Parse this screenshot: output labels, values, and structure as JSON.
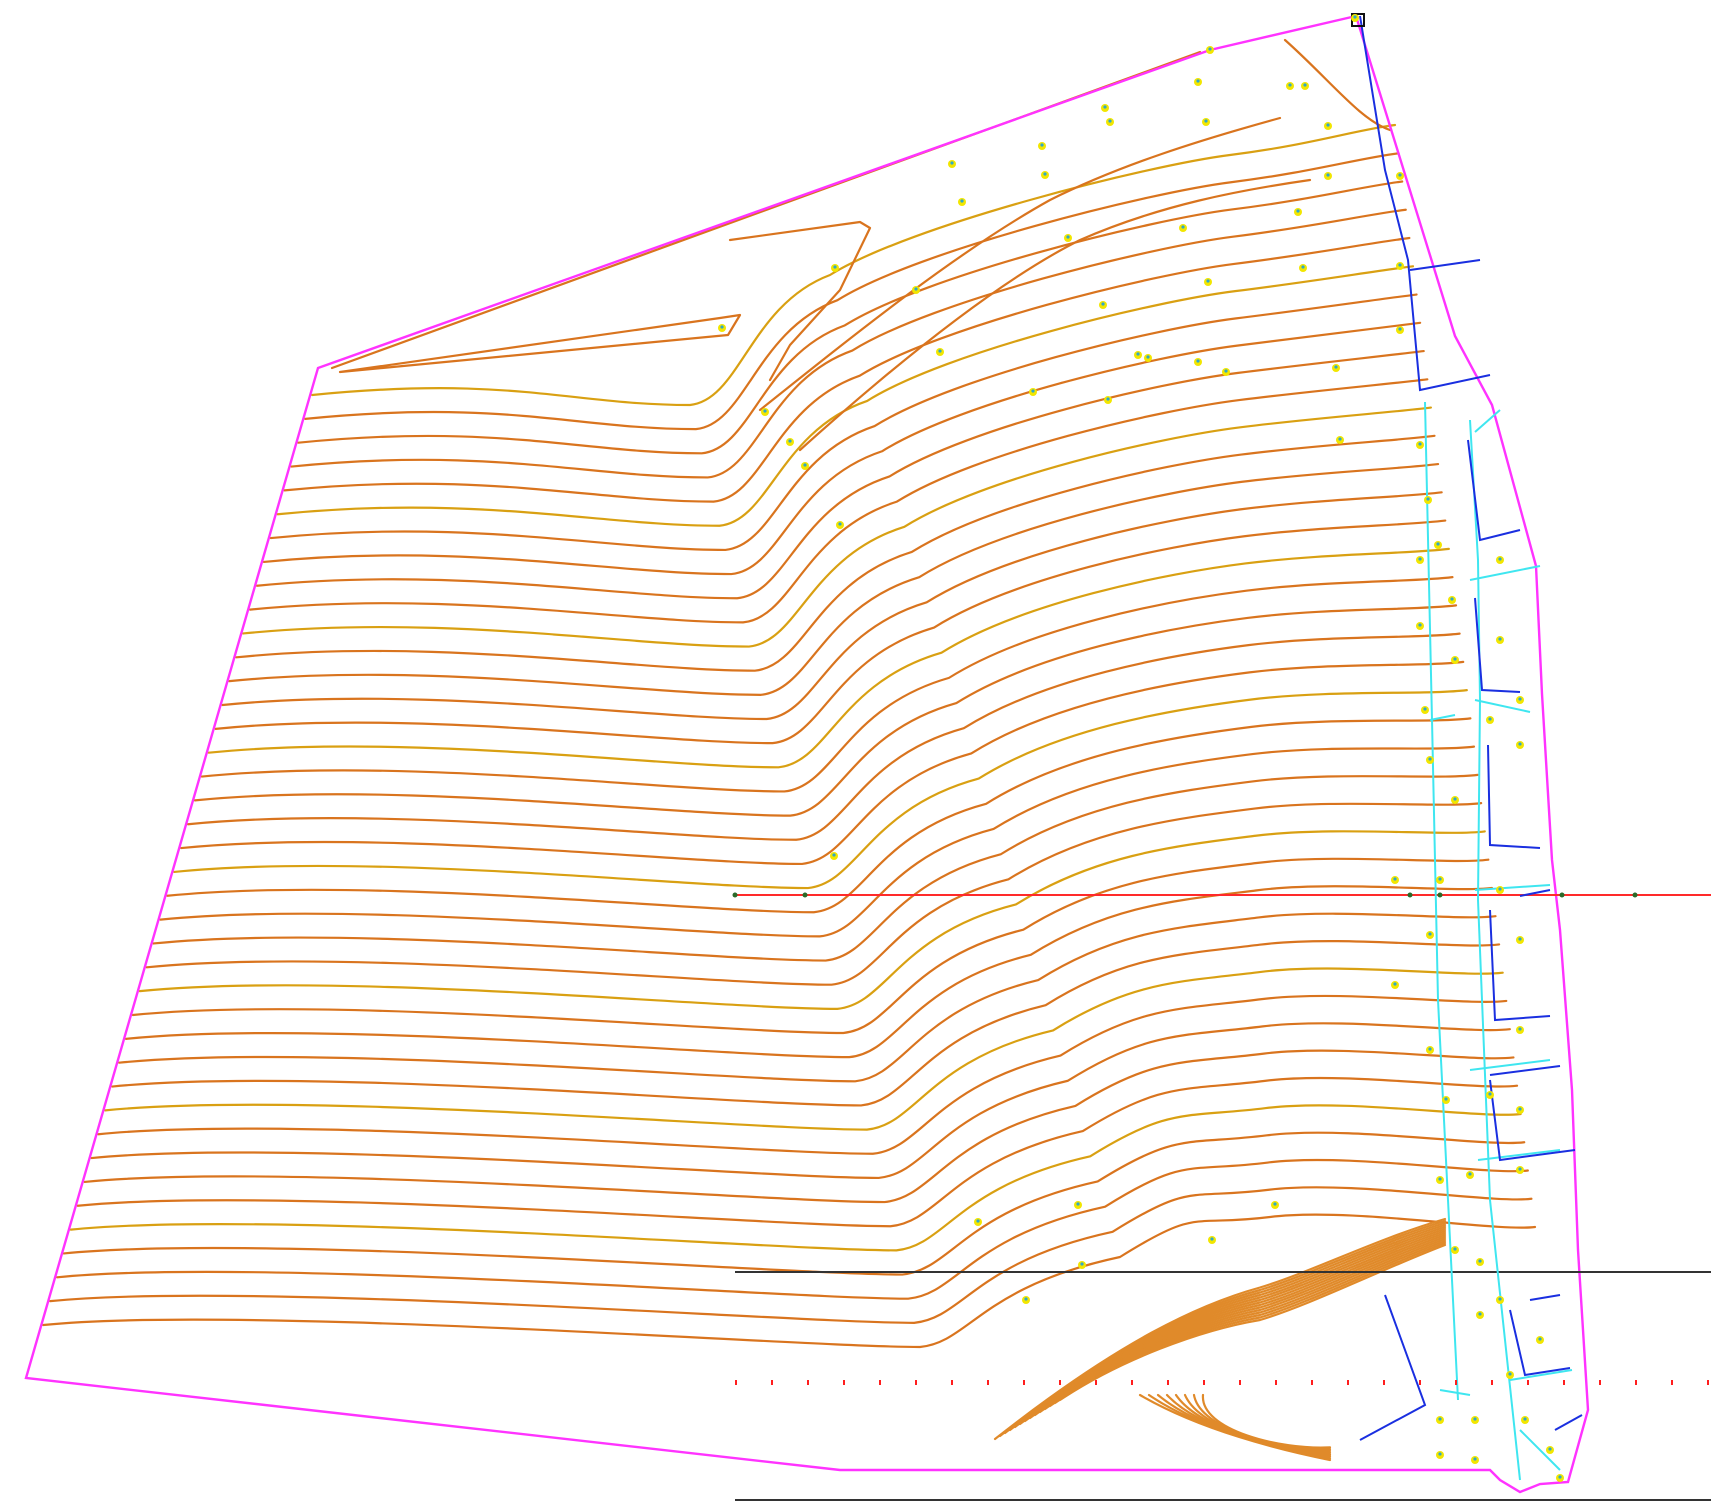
{
  "canvas": {
    "background": "#ffffff"
  },
  "colors": {
    "boundary": "#ff33ff",
    "contour_minor": "#d9741e",
    "contour_major": "#d9a012",
    "contour_dense": "#e08a2a",
    "section_line": "#ff2a2a",
    "reference_line": "#333333",
    "wall_line": "#1a2fe0",
    "pipe_line": "#3fe6f0",
    "survey_point": "#f2e600",
    "survey_point_center": "#2fa8c8",
    "station_marker": "#ff1e1e",
    "black_marker": "#111111"
  },
  "map_layers": {
    "site_boundary": "site-boundary",
    "contours": "topographic-contours",
    "section_line": "cross-section-line",
    "reference_lines": "reference-lines",
    "walls": "retaining-walls",
    "pipes": "drainage-pipes",
    "survey_points": "survey-points",
    "station_markers": "station-markers"
  },
  "contour_settings": {
    "count": 40,
    "major_every": 5
  }
}
